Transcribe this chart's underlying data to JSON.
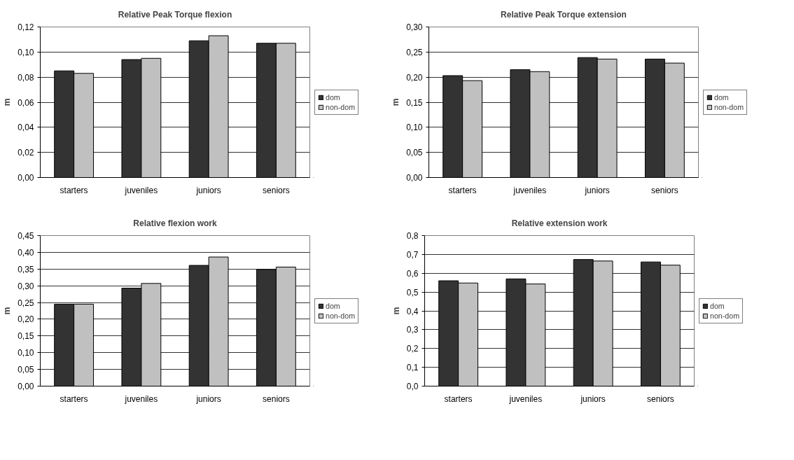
{
  "chart_data": [
    {
      "type": "bar",
      "title": "Relative Peak Torque flexion",
      "ylabel": "m",
      "categories": [
        "starters",
        "juveniles",
        "juniors",
        "seniors"
      ],
      "series": [
        {
          "name": "dom",
          "color": "#333333",
          "values": [
            0.085,
            0.094,
            0.109,
            0.107
          ]
        },
        {
          "name": "non-dom",
          "color": "#c0c0c0",
          "values": [
            0.083,
            0.095,
            0.113,
            0.107
          ]
        }
      ],
      "ylim": [
        0,
        0.12
      ],
      "yticks": [
        {
          "value": 0,
          "label": "0,00"
        },
        {
          "value": 0.02,
          "label": "0,02"
        },
        {
          "value": 0.04,
          "label": "0,04"
        },
        {
          "value": 0.06,
          "label": "0,06"
        },
        {
          "value": 0.08,
          "label": "0,08"
        },
        {
          "value": 0.1,
          "label": "0,10"
        },
        {
          "value": 0.12,
          "label": "0,12"
        }
      ],
      "grid": "y",
      "legend": "right"
    },
    {
      "type": "bar",
      "title": "Relative Peak Torque extension",
      "ylabel": "m",
      "categories": [
        "starters",
        "juveniles",
        "juniors",
        "seniors"
      ],
      "series": [
        {
          "name": "dom",
          "color": "#333333",
          "values": [
            0.203,
            0.215,
            0.239,
            0.236
          ]
        },
        {
          "name": "non-dom",
          "color": "#c0c0c0",
          "values": [
            0.193,
            0.211,
            0.236,
            0.228
          ]
        }
      ],
      "ylim": [
        0,
        0.3
      ],
      "yticks": [
        {
          "value": 0,
          "label": "0,00"
        },
        {
          "value": 0.05,
          "label": "0,05"
        },
        {
          "value": 0.1,
          "label": "0,10"
        },
        {
          "value": 0.15,
          "label": "0,15"
        },
        {
          "value": 0.2,
          "label": "0,20"
        },
        {
          "value": 0.25,
          "label": "0,25"
        },
        {
          "value": 0.3,
          "label": "0,30"
        }
      ],
      "grid": "y",
      "legend": "right"
    },
    {
      "type": "bar",
      "title": "Relative flexion work",
      "ylabel": "m",
      "categories": [
        "starters",
        "juveniles",
        "juniors",
        "seniors"
      ],
      "series": [
        {
          "name": "dom",
          "color": "#333333",
          "values": [
            0.245,
            0.293,
            0.361,
            0.349
          ]
        },
        {
          "name": "non-dom",
          "color": "#c0c0c0",
          "values": [
            0.245,
            0.307,
            0.386,
            0.356
          ]
        }
      ],
      "ylim": [
        0,
        0.45
      ],
      "yticks": [
        {
          "value": 0,
          "label": "0,00"
        },
        {
          "value": 0.05,
          "label": "0,05"
        },
        {
          "value": 0.1,
          "label": "0,10"
        },
        {
          "value": 0.15,
          "label": "0,15"
        },
        {
          "value": 0.2,
          "label": "0,20"
        },
        {
          "value": 0.25,
          "label": "0,25"
        },
        {
          "value": 0.3,
          "label": "0,30"
        },
        {
          "value": 0.35,
          "label": "0,35"
        },
        {
          "value": 0.4,
          "label": "0,40"
        },
        {
          "value": 0.45,
          "label": "0,45"
        }
      ],
      "grid": "y",
      "legend": "right"
    },
    {
      "type": "bar",
      "title": "Relative extension work",
      "ylabel": "m",
      "categories": [
        "starters",
        "juveniles",
        "juniors",
        "seniors"
      ],
      "series": [
        {
          "name": "dom",
          "color": "#333333",
          "values": [
            0.56,
            0.57,
            0.673,
            0.66
          ]
        },
        {
          "name": "non-dom",
          "color": "#c0c0c0",
          "values": [
            0.548,
            0.543,
            0.665,
            0.643
          ]
        }
      ],
      "ylim": [
        0,
        0.8
      ],
      "yticks": [
        {
          "value": 0,
          "label": "0,0"
        },
        {
          "value": 0.1,
          "label": "0,1"
        },
        {
          "value": 0.2,
          "label": "0,2"
        },
        {
          "value": 0.3,
          "label": "0,3"
        },
        {
          "value": 0.4,
          "label": "0,4"
        },
        {
          "value": 0.5,
          "label": "0,5"
        },
        {
          "value": 0.6,
          "label": "0,6"
        },
        {
          "value": 0.7,
          "label": "0,7"
        },
        {
          "value": 0.8,
          "label": "0,8"
        }
      ],
      "grid": "y",
      "legend": "right"
    }
  ]
}
